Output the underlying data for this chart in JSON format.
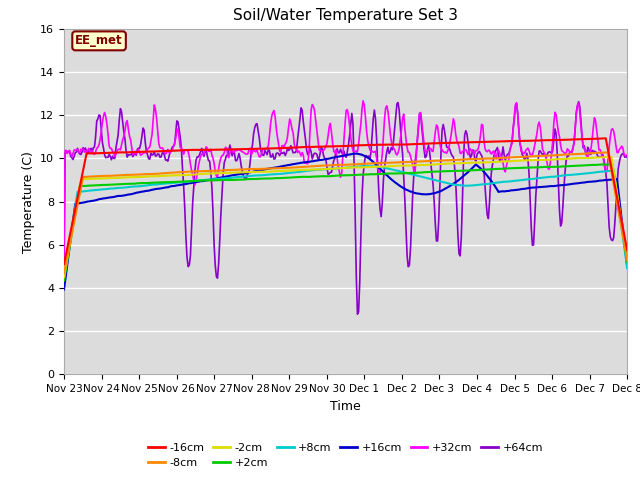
{
  "title": "Soil/Water Temperature Set 3",
  "xlabel": "Time",
  "ylabel": "Temperature (C)",
  "ylim": [
    0,
    16
  ],
  "yticks": [
    0,
    2,
    4,
    6,
    8,
    10,
    12,
    14,
    16
  ],
  "x_labels": [
    "Nov 23",
    "Nov 24",
    "Nov 25",
    "Nov 26",
    "Nov 27",
    "Nov 28",
    "Nov 29",
    "Nov 30",
    "Dec 1",
    "Dec 2",
    "Dec 3",
    "Dec 4",
    "Dec 5",
    "Dec 6",
    "Dec 7",
    "Dec 8"
  ],
  "annotation_text": "EE_met",
  "annotation_bg": "#ffffcc",
  "annotation_border": "#800000",
  "bg_color": "#dcdcdc",
  "series_colors": {
    "-16cm": "#ff0000",
    "-8cm": "#ff8800",
    "-2cm": "#dddd00",
    "+2cm": "#00cc00",
    "+8cm": "#00cccc",
    "+16cm": "#0000cc",
    "+32cm": "#ff00ff",
    "+64cm": "#8800cc"
  },
  "n_points": 500
}
